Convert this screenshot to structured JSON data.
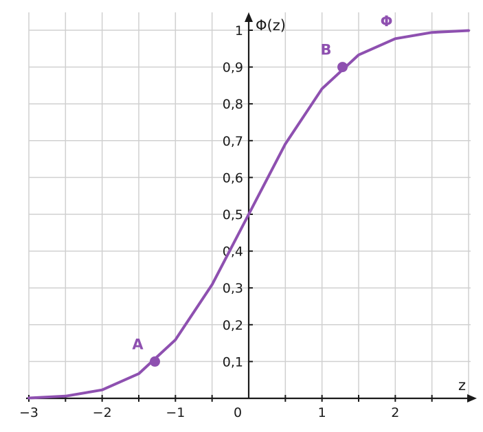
{
  "chart_data": {
    "type": "line",
    "xlabel": "z",
    "ylabel": "Φ(z)",
    "xlim": [
      -3,
      3
    ],
    "ylim": [
      0,
      1
    ],
    "grid": true,
    "x_ticks": [
      {
        "value": -3,
        "label": "−3"
      },
      {
        "value": -2,
        "label": "−2"
      },
      {
        "value": -1,
        "label": "−1"
      },
      {
        "value": 0,
        "label": "0"
      },
      {
        "value": 1,
        "label": "1"
      },
      {
        "value": 2,
        "label": "2"
      }
    ],
    "y_ticks": [
      {
        "value": 0.1,
        "label": "0,1"
      },
      {
        "value": 0.2,
        "label": "0,2"
      },
      {
        "value": 0.3,
        "label": "0,3"
      },
      {
        "value": 0.4,
        "label": "0,4"
      },
      {
        "value": 0.5,
        "label": "0,5"
      },
      {
        "value": 0.6,
        "label": "0,6"
      },
      {
        "value": 0.7,
        "label": "0,7"
      },
      {
        "value": 0.8,
        "label": "0,8"
      },
      {
        "value": 0.9,
        "label": "0,9"
      },
      {
        "value": 1,
        "label": "1"
      }
    ],
    "series": [
      {
        "name": "Φ",
        "color": "#8e50b0",
        "x": [
          -3,
          -2.5,
          -2,
          -1.5,
          -1,
          -0.5,
          0,
          0.5,
          1,
          1.5,
          2,
          2.5,
          3
        ],
        "y": [
          0.001,
          0.006,
          0.023,
          0.067,
          0.159,
          0.309,
          0.5,
          0.691,
          0.841,
          0.933,
          0.977,
          0.994,
          0.999
        ]
      }
    ],
    "points": [
      {
        "label": "A",
        "x": -1.28,
        "y": 0.1
      },
      {
        "label": "B",
        "x": 1.28,
        "y": 0.9
      }
    ]
  }
}
